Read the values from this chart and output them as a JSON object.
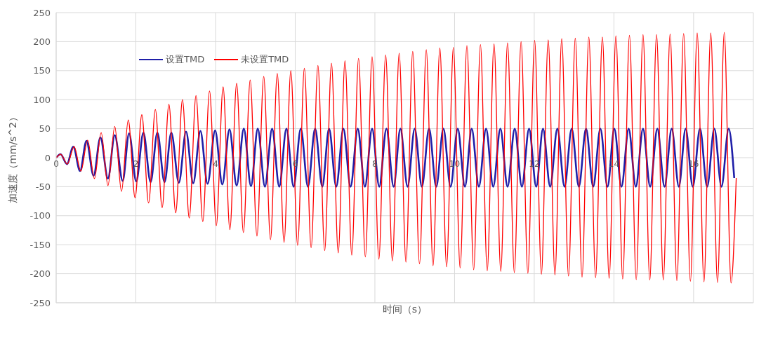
{
  "chart_data": {
    "type": "line",
    "xlabel": "时间（s）",
    "ylabel": "加速度（mm/s^2）",
    "xlim": [
      0,
      17.5
    ],
    "xticks": [
      0,
      2,
      4,
      6,
      8,
      10,
      12,
      14,
      16
    ],
    "ylim": [
      -250,
      250
    ],
    "yticks": [
      -250,
      -200,
      -150,
      -100,
      -50,
      0,
      50,
      100,
      150,
      200,
      250
    ],
    "grid": true,
    "legend": "top left",
    "series": [
      {
        "name": "设置TMD",
        "color": "#1f1fa8",
        "x": [
          0,
          0.11,
          0.27,
          0.43,
          0.6,
          0.76,
          0.94,
          1.11,
          1.3,
          1.47,
          1.67,
          1.83,
          2.01,
          2.19,
          2.37,
          2.54,
          2.72,
          2.89,
          3.08,
          3.26,
          3.44,
          3.62,
          3.8,
          3.99,
          4.17,
          4.35,
          4.53,
          4.71,
          4.89,
          5.06,
          5.24,
          5.42,
          5.6,
          5.78,
          5.96,
          6.14,
          6.32,
          6.5,
          6.68,
          6.85,
          7.03,
          7.21,
          7.39,
          7.57,
          7.75,
          7.93,
          8.11,
          8.29,
          8.47,
          8.64,
          8.82,
          9.0,
          9.18,
          9.36,
          9.54,
          9.72,
          9.9,
          10.08,
          10.26,
          10.43,
          10.61,
          10.79,
          10.97,
          11.15,
          11.33,
          11.51,
          11.69,
          11.87,
          12.05,
          12.22,
          12.4,
          12.58,
          12.76,
          12.94,
          13.12,
          13.3,
          13.48,
          13.66,
          13.84,
          14.01,
          14.19,
          14.37,
          14.55,
          14.73,
          14.91,
          15.09,
          15.27,
          15.45,
          15.63,
          15.8,
          15.98,
          16.16,
          16.34,
          16.52,
          16.7,
          16.88,
          17.02
        ],
        "values": [
          0,
          6,
          -11,
          19,
          -23,
          29,
          -31,
          35,
          -36,
          39,
          -40,
          42,
          -41,
          43,
          -42,
          43,
          -42,
          43,
          -43,
          45,
          -44,
          46,
          -45,
          47,
          -46,
          49,
          -48,
          50,
          -49,
          50,
          -50,
          50,
          -50,
          50,
          -50,
          50,
          -50,
          50,
          -50,
          50,
          -50,
          50,
          -50,
          50,
          -50,
          50,
          -50,
          50,
          -50,
          50,
          -50,
          50,
          -50,
          50,
          -50,
          50,
          -50,
          50,
          -50,
          50,
          -50,
          50,
          -50,
          50,
          -50,
          50,
          -50,
          50,
          -50,
          50,
          -50,
          50,
          -50,
          50,
          -50,
          50,
          -50,
          50,
          -50,
          50,
          -50,
          50,
          -50,
          50,
          -50,
          50,
          -50,
          50,
          -50,
          50,
          -50,
          50,
          -50,
          50,
          -50,
          50,
          -35
        ]
      },
      {
        "name": "未设置TMD",
        "color": "#ff0000",
        "x": [
          0,
          0.11,
          0.28,
          0.45,
          0.62,
          0.79,
          0.96,
          1.13,
          1.3,
          1.47,
          1.64,
          1.81,
          1.98,
          2.15,
          2.32,
          2.49,
          2.66,
          2.83,
          3.0,
          3.17,
          3.34,
          3.51,
          3.68,
          3.85,
          4.02,
          4.19,
          4.36,
          4.53,
          4.7,
          4.87,
          5.04,
          5.21,
          5.38,
          5.55,
          5.72,
          5.89,
          6.06,
          6.23,
          6.4,
          6.57,
          6.74,
          6.91,
          7.08,
          7.25,
          7.42,
          7.59,
          7.76,
          7.93,
          8.1,
          8.27,
          8.44,
          8.61,
          8.78,
          8.95,
          9.12,
          9.29,
          9.46,
          9.63,
          9.8,
          9.97,
          10.14,
          10.31,
          10.48,
          10.65,
          10.82,
          10.99,
          11.16,
          11.33,
          11.5,
          11.67,
          11.84,
          12.01,
          12.18,
          12.35,
          12.52,
          12.69,
          12.86,
          13.03,
          13.2,
          13.37,
          13.54,
          13.71,
          13.88,
          14.05,
          14.22,
          14.39,
          14.56,
          14.73,
          14.9,
          15.07,
          15.24,
          15.41,
          15.58,
          15.75,
          15.92,
          16.09,
          16.26,
          16.43,
          16.6,
          16.77,
          16.94,
          17.07
        ],
        "values": [
          0,
          6,
          -11,
          19,
          -23,
          30,
          -36,
          43,
          -48,
          54,
          -58,
          65,
          -69,
          74,
          -78,
          83,
          -86,
          92,
          -95,
          100,
          -104,
          107,
          -110,
          115,
          -117,
          122,
          -124,
          128,
          -129,
          134,
          -135,
          140,
          -141,
          145,
          -146,
          150,
          -151,
          154,
          -155,
          159,
          -160,
          163,
          -164,
          167,
          -168,
          171,
          -171,
          174,
          -175,
          177,
          -178,
          180,
          -180,
          183,
          -183,
          186,
          -186,
          189,
          -188,
          190,
          -190,
          193,
          -193,
          195,
          -195,
          196,
          -196,
          198,
          -198,
          200,
          -199,
          202,
          -201,
          203,
          -202,
          205,
          -204,
          206,
          -206,
          208,
          -207,
          208,
          -208,
          210,
          -209,
          211,
          -210,
          212,
          -211,
          212,
          -211,
          213,
          -212,
          214,
          -213,
          215,
          -214,
          215,
          -215,
          216,
          -216,
          -35
        ]
      }
    ]
  }
}
